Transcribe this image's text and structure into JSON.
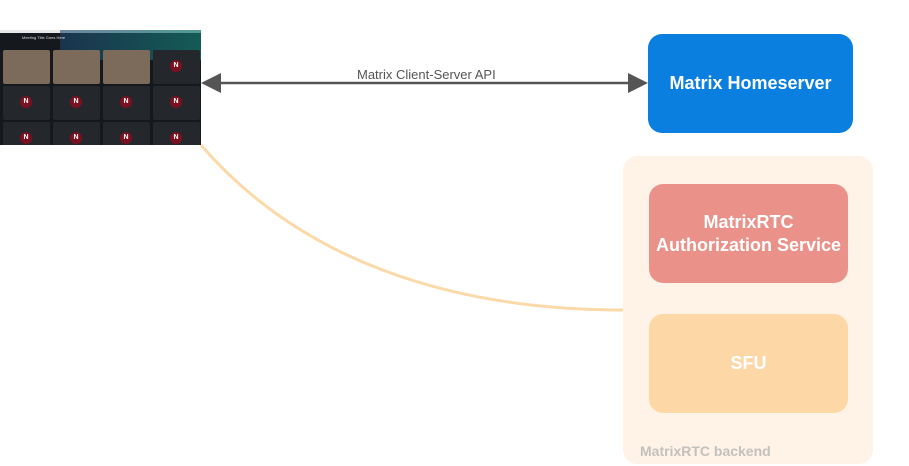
{
  "client": {
    "meeting_title": "Meeting Title Goes Here",
    "avatar_initial": "N"
  },
  "api_label": "Matrix Client-Server API",
  "homeserver": {
    "label": "Matrix Homeserver"
  },
  "backend": {
    "label": "MatrixRTC backend",
    "auth": {
      "label": "MatrixRTC Authorization Service"
    },
    "sfu": {
      "label": "SFU"
    }
  },
  "colors": {
    "homeserver": "#0a7fdf",
    "auth": "#ea928a",
    "sfu": "#fdd7a6",
    "backend": "#fff3e8",
    "connection": "#fcd9a8",
    "arrow": "#555555"
  }
}
